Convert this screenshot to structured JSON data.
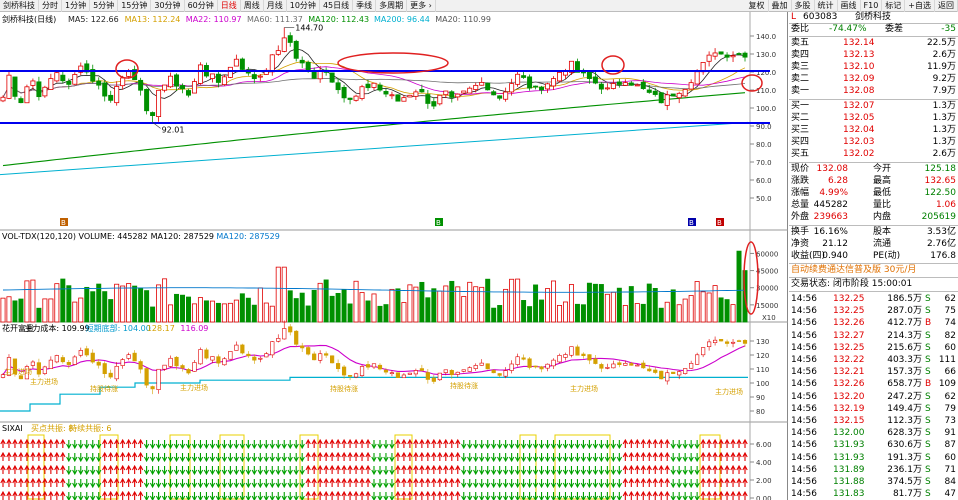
{
  "toolbar": {
    "left": [
      {
        "name": "stock-name-tab",
        "label": "剑桥科技"
      },
      {
        "name": "period-1min",
        "label": "分时"
      },
      {
        "name": "period-1min-k",
        "label": "1分钟"
      },
      {
        "name": "period-5min",
        "label": "5分钟"
      },
      {
        "name": "period-15min",
        "label": "15分钟"
      },
      {
        "name": "period-30min",
        "label": "30分钟"
      },
      {
        "name": "period-60min",
        "label": "60分钟"
      },
      {
        "name": "period-day",
        "label": "日线",
        "active": true
      },
      {
        "name": "period-week",
        "label": "周线"
      },
      {
        "name": "period-month",
        "label": "月线"
      },
      {
        "name": "period-10min",
        "label": "10分钟"
      },
      {
        "name": "period-45min",
        "label": "45日线"
      },
      {
        "name": "period-season",
        "label": "季线"
      },
      {
        "name": "period-multi",
        "label": "多周期"
      },
      {
        "name": "more-menu",
        "label": "更多 ›"
      }
    ],
    "right": [
      {
        "name": "rights-button",
        "label": "复权"
      },
      {
        "name": "overlay-button",
        "label": "叠加"
      },
      {
        "name": "multi-stock-button",
        "label": "多股"
      },
      {
        "name": "stats-button",
        "label": "统计"
      },
      {
        "name": "draw-line-button",
        "label": "画线"
      },
      {
        "name": "f10-button",
        "label": "F10"
      },
      {
        "name": "mark-button",
        "label": "标记"
      },
      {
        "name": "auto-button",
        "label": "+自选"
      },
      {
        "name": "back-button",
        "label": "返回"
      }
    ]
  },
  "price_pane": {
    "title": "剑桥科技(日线)",
    "mas": [
      {
        "label": "MA5: 122.66",
        "color": "#222222"
      },
      {
        "label": "MA13: 112.24",
        "color": "#d4a000"
      },
      {
        "label": "MA22: 110.97",
        "color": "#cc00cc"
      },
      {
        "label": "MA60: 111.37",
        "color": "#707070"
      },
      {
        "label": "MA120: 112.43",
        "color": "#009000"
      },
      {
        "label": "MA200: 96.44",
        "color": "#00b0d0"
      },
      {
        "label": "MA20: 110.99",
        "color": "#555555"
      }
    ],
    "high_label": "144.70",
    "low_label": "92.01",
    "axis": [
      "140.0",
      "130.0",
      "120.0",
      "110.0",
      "100.0",
      "90.0",
      "80.0",
      "70.0",
      "60.0",
      "50.0"
    ],
    "markers": [
      "B",
      "B",
      "B",
      "B"
    ]
  },
  "volume_pane": {
    "labels": [
      "VOL-TDX(120,120) VOLUME: 445282",
      "MA120: 287529",
      "MA120: 287529"
    ],
    "axis": [
      "60000",
      "45000",
      "30000",
      "15000"
    ],
    "unit": "X10"
  },
  "cost_pane": {
    "labels": [
      "花开富贵",
      "主力成本: 109.99",
      "短期底部: 104.00",
      "128.17",
      "116.09"
    ],
    "axis": [
      "130",
      "120",
      "110",
      "100",
      "90",
      "80"
    ],
    "annotations": [
      "主力进场",
      "主力进场",
      "持股待涨",
      "主力进场",
      "持股待涨",
      "持股待涨",
      "主力进场",
      "主力进场"
    ]
  },
  "signal_pane": {
    "labels": [
      "SIXAI",
      "买点共振: 8",
      "持续共振: 6"
    ],
    "axis": [
      "6.00",
      "4.00",
      "2.00",
      "0.00"
    ]
  },
  "quote": {
    "code": "603083",
    "name": "剑桥科技",
    "webi": {
      "label": "委比",
      "value": "-74.47%",
      "diff_label": "委差",
      "diff": "-35"
    },
    "asks": [
      {
        "label": "卖五",
        "price": "132.14",
        "vol": "22.5万"
      },
      {
        "label": "卖四",
        "price": "132.13",
        "vol": "2.6万"
      },
      {
        "label": "卖三",
        "price": "132.10",
        "vol": "11.9万"
      },
      {
        "label": "卖二",
        "price": "132.09",
        "vol": "9.2万"
      },
      {
        "label": "卖一",
        "price": "132.08",
        "vol": "7.9万"
      }
    ],
    "bids": [
      {
        "label": "买一",
        "price": "132.07",
        "vol": "1.3万"
      },
      {
        "label": "买二",
        "price": "132.05",
        "vol": "1.3万"
      },
      {
        "label": "买三",
        "price": "132.04",
        "vol": "1.3万"
      },
      {
        "label": "买四",
        "price": "132.03",
        "vol": "1.3万"
      },
      {
        "label": "买五",
        "price": "132.02",
        "vol": "2.6万"
      }
    ],
    "stats": [
      {
        "l1": "现价",
        "v1": "132.08",
        "c1": "red",
        "l2": "今开",
        "v2": "125.18",
        "c2": "green"
      },
      {
        "l1": "涨跌",
        "v1": "6.28",
        "c1": "red",
        "l2": "最高",
        "v2": "132.65",
        "c2": "red"
      },
      {
        "l1": "涨幅",
        "v1": "4.99%",
        "c1": "red",
        "l2": "最低",
        "v2": "122.50",
        "c2": "green"
      },
      {
        "l1": "总量",
        "v1": "445282",
        "c1": "",
        "l2": "量比",
        "v2": "1.06",
        "c2": "red"
      },
      {
        "l1": "外盘",
        "v1": "239663",
        "c1": "red",
        "l2": "内盘",
        "v2": "205619",
        "c2": "green"
      }
    ],
    "stats2": [
      {
        "l1": "换手",
        "v1": "16.16%",
        "l2": "股本",
        "v2": "3.53亿"
      },
      {
        "l1": "净资",
        "v1": "21.12",
        "l2": "流通",
        "v2": "2.76亿"
      },
      {
        "l1": "收益(四)",
        "v1": "0.940",
        "l2": "PE(动)",
        "v2": "176.8"
      }
    ],
    "promo": "自动续费通达信普及版  30元/月",
    "trade_status": "交易状态: 闭市阶段 15:00:01",
    "ticks": [
      {
        "t": "14:56",
        "p": "132.25",
        "v": "186.5万",
        "f": "S",
        "n": "62"
      },
      {
        "t": "14:56",
        "p": "132.25",
        "v": "287.0万",
        "f": "S",
        "n": "75"
      },
      {
        "t": "14:56",
        "p": "132.26",
        "v": "412.7万",
        "f": "B",
        "n": "74"
      },
      {
        "t": "14:56",
        "p": "132.27",
        "v": "214.3万",
        "f": "S",
        "n": "82"
      },
      {
        "t": "14:56",
        "p": "132.25",
        "v": "215.6万",
        "f": "S",
        "n": "60"
      },
      {
        "t": "14:56",
        "p": "132.22",
        "v": "403.3万",
        "f": "S",
        "n": "111"
      },
      {
        "t": "14:56",
        "p": "132.21",
        "v": "157.3万",
        "f": "S",
        "n": "66"
      },
      {
        "t": "14:56",
        "p": "132.26",
        "v": "658.7万",
        "f": "B",
        "n": "109"
      },
      {
        "t": "14:56",
        "p": "132.20",
        "v": "247.2万",
        "f": "S",
        "n": "62"
      },
      {
        "t": "14:56",
        "p": "132.19",
        "v": "149.4万",
        "f": "S",
        "n": "79"
      },
      {
        "t": "14:56",
        "p": "132.15",
        "v": "112.3万",
        "f": "S",
        "n": "73"
      },
      {
        "t": "14:56",
        "p": "132.00",
        "v": "628.3万",
        "f": "S",
        "n": "91"
      },
      {
        "t": "14:56",
        "p": "131.93",
        "v": "630.6万",
        "f": "S",
        "n": "87"
      },
      {
        "t": "14:56",
        "p": "131.93",
        "v": "191.3万",
        "f": "S",
        "n": "60"
      },
      {
        "t": "14:56",
        "p": "131.89",
        "v": "236.1万",
        "f": "S",
        "n": "71"
      },
      {
        "t": "14:56",
        "p": "131.88",
        "v": "374.5万",
        "f": "S",
        "n": "84"
      },
      {
        "t": "14:56",
        "p": "131.83",
        "v": "81.7万",
        "f": "S",
        "n": "47"
      }
    ]
  }
}
